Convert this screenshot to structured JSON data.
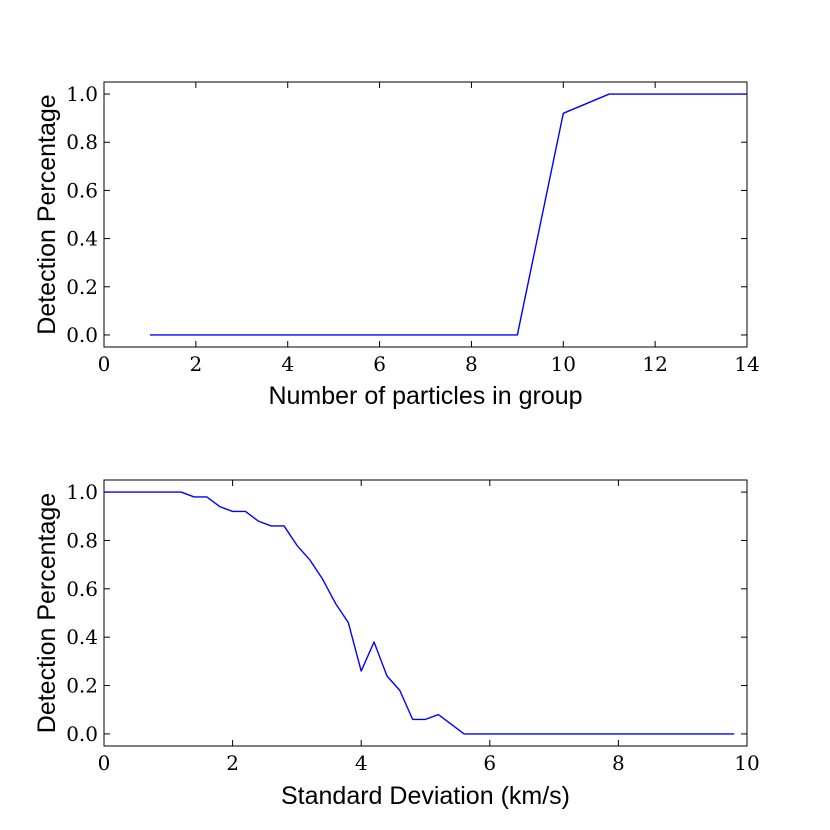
{
  "colors": {
    "line": "#0000ff",
    "axes": "#000000",
    "background": "#ffffff"
  },
  "chart_data": [
    {
      "type": "line",
      "title": "",
      "xlabel": "Number of particles in group",
      "ylabel": "Detection Percentage",
      "xlim": [
        0,
        14
      ],
      "ylim": [
        -0.05,
        1.05
      ],
      "xticks": [
        0,
        2,
        4,
        6,
        8,
        10,
        12,
        14
      ],
      "xtick_labels": [
        "0",
        "2",
        "4",
        "6",
        "8",
        "10",
        "12",
        "14"
      ],
      "yticks": [
        0.0,
        0.2,
        0.4,
        0.6,
        0.8,
        1.0
      ],
      "ytick_labels": [
        "0.0",
        "0.2",
        "0.4",
        "0.6",
        "0.8",
        "1.0"
      ],
      "grid": false,
      "series": [
        {
          "name": "detection",
          "x": [
            1,
            2,
            3,
            4,
            5,
            6,
            7,
            8,
            9,
            10,
            11,
            12,
            13,
            14
          ],
          "y": [
            0,
            0,
            0,
            0,
            0,
            0,
            0,
            0,
            0,
            0.92,
            1.0,
            1.0,
            1.0,
            1.0
          ]
        }
      ]
    },
    {
      "type": "line",
      "title": "",
      "xlabel": "Standard Deviation (km/s)",
      "ylabel": "Detection Percentage",
      "xlim": [
        0,
        10
      ],
      "ylim": [
        -0.05,
        1.05
      ],
      "xticks": [
        0,
        2,
        4,
        6,
        8,
        10
      ],
      "xtick_labels": [
        "0",
        "2",
        "4",
        "6",
        "8",
        "10"
      ],
      "yticks": [
        0.0,
        0.2,
        0.4,
        0.6,
        0.8,
        1.0
      ],
      "ytick_labels": [
        "0.0",
        "0.2",
        "0.4",
        "0.6",
        "0.8",
        "1.0"
      ],
      "grid": false,
      "series": [
        {
          "name": "detection",
          "x": [
            0.0,
            0.2,
            0.4,
            0.6,
            0.8,
            1.0,
            1.2,
            1.4,
            1.6,
            1.8,
            2.0,
            2.2,
            2.4,
            2.6,
            2.8,
            3.0,
            3.2,
            3.4,
            3.6,
            3.8,
            4.0,
            4.2,
            4.4,
            4.6,
            4.8,
            5.0,
            5.2,
            5.4,
            5.6,
            5.8,
            6.0,
            6.2,
            6.4,
            6.6,
            6.8,
            7.0,
            7.2,
            7.4,
            7.6,
            7.8,
            8.0,
            8.2,
            8.4,
            8.6,
            8.8,
            9.0,
            9.2,
            9.4,
            9.6,
            9.8
          ],
          "y": [
            1.0,
            1.0,
            1.0,
            1.0,
            1.0,
            1.0,
            1.0,
            0.98,
            0.98,
            0.94,
            0.92,
            0.92,
            0.88,
            0.86,
            0.86,
            0.78,
            0.72,
            0.64,
            0.54,
            0.46,
            0.26,
            0.38,
            0.24,
            0.18,
            0.06,
            0.06,
            0.08,
            0.04,
            0.0,
            0.0,
            0.0,
            0.0,
            0.0,
            0.0,
            0.0,
            0.0,
            0.0,
            0.0,
            0.0,
            0.0,
            0.0,
            0.0,
            0.0,
            0.0,
            0.0,
            0.0,
            0.0,
            0.0,
            0.0,
            0.0
          ]
        }
      ]
    }
  ]
}
